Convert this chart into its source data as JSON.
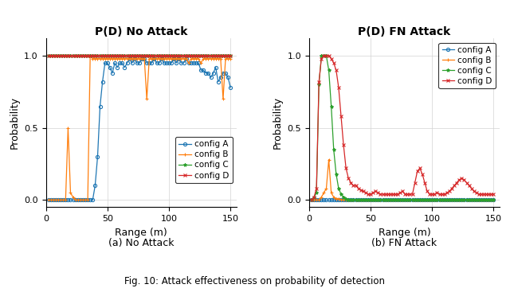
{
  "title_left": "P(D) No Attack",
  "title_right": "P(D) FN Attack",
  "xlabel": "Range (m)",
  "ylabel": "Probability",
  "caption_left": "(a) No Attack",
  "caption_right": "(b) FN Attack",
  "fig_caption": "Fig. 10: Attack effectiveness on probability of detection",
  "xlim": [
    0,
    155
  ],
  "ylim": [
    -0.05,
    1.12
  ],
  "yticks": [
    0,
    0.5,
    1
  ],
  "xticks": [
    0,
    50,
    100,
    150
  ],
  "colors": {
    "A": "#1f77b4",
    "B": "#ff7f0e",
    "C": "#2ca02c",
    "D": "#d62728"
  },
  "markers": {
    "A": "o",
    "B": "+",
    "C": "*",
    "D": "x"
  },
  "no_attack": {
    "range": [
      2,
      4,
      6,
      8,
      10,
      12,
      14,
      16,
      18,
      20,
      22,
      24,
      26,
      28,
      30,
      32,
      34,
      36,
      38,
      40,
      42,
      44,
      46,
      48,
      50,
      52,
      54,
      56,
      58,
      60,
      62,
      64,
      66,
      68,
      70,
      72,
      74,
      76,
      78,
      80,
      82,
      84,
      86,
      88,
      90,
      92,
      94,
      96,
      98,
      100,
      102,
      104,
      106,
      108,
      110,
      112,
      114,
      116,
      118,
      120,
      122,
      124,
      126,
      128,
      130,
      132,
      134,
      136,
      138,
      140,
      142,
      144,
      146,
      148,
      150
    ],
    "A": [
      0,
      0,
      0,
      0,
      0,
      0,
      0,
      0,
      0,
      0,
      0,
      0,
      0,
      0,
      0,
      0,
      0,
      0,
      0,
      0.1,
      0.3,
      0.65,
      0.82,
      0.95,
      0.95,
      0.92,
      0.88,
      0.95,
      0.92,
      0.95,
      0.95,
      0.92,
      0.95,
      0.98,
      0.95,
      0.98,
      0.95,
      0.95,
      0.98,
      0.98,
      0.95,
      0.95,
      0.95,
      0.98,
      0.95,
      0.95,
      0.98,
      0.95,
      0.95,
      0.95,
      0.95,
      0.98,
      0.95,
      0.98,
      0.95,
      0.95,
      0.98,
      0.95,
      0.95,
      0.95,
      0.95,
      0.95,
      0.9,
      0.9,
      0.88,
      0.88,
      0.85,
      0.88,
      0.92,
      0.82,
      0.85,
      0.88,
      0.88,
      0.85,
      0.78
    ],
    "B": [
      0,
      0,
      0,
      0,
      0,
      0,
      0,
      0,
      0.5,
      0.05,
      0.02,
      0.0,
      0.0,
      0.0,
      0.0,
      0.0,
      0.0,
      1.0,
      0.98,
      0.98,
      0.98,
      0.98,
      0.98,
      0.98,
      0.98,
      0.98,
      0.98,
      0.98,
      0.98,
      0.98,
      0.98,
      0.98,
      0.98,
      0.98,
      0.98,
      0.98,
      0.98,
      0.98,
      0.98,
      0.98,
      0.7,
      0.98,
      0.98,
      0.98,
      0.98,
      0.98,
      0.98,
      0.98,
      0.98,
      0.98,
      0.98,
      0.98,
      0.98,
      0.98,
      0.98,
      0.98,
      0.98,
      0.95,
      0.98,
      0.98,
      0.98,
      0.98,
      0.95,
      0.98,
      0.98,
      0.98,
      0.98,
      0.98,
      0.98,
      0.98,
      0.98,
      0.7,
      0.98,
      0.98,
      0.98
    ],
    "C": [
      1,
      1,
      1,
      1,
      1,
      1,
      1,
      1,
      1,
      1,
      1,
      1,
      1,
      1,
      1,
      1,
      1,
      1,
      1,
      1,
      1,
      1,
      1,
      1,
      1,
      1,
      1,
      1,
      1,
      1,
      1,
      1,
      1,
      1,
      1,
      1,
      1,
      1,
      1,
      1,
      1,
      1,
      1,
      1,
      1,
      1,
      1,
      1,
      1,
      1,
      1,
      1,
      1,
      1,
      1,
      1,
      1,
      1,
      1,
      1,
      1,
      1,
      1,
      1,
      1,
      1,
      1,
      1,
      1,
      1,
      1,
      1,
      1,
      1,
      1
    ],
    "D": [
      1,
      1,
      1,
      1,
      1,
      1,
      1,
      1,
      1,
      1,
      1,
      1,
      1,
      1,
      1,
      1,
      1,
      1,
      1,
      1,
      1,
      1,
      1,
      1,
      1,
      1,
      1,
      1,
      1,
      1,
      1,
      1,
      1,
      1,
      1,
      1,
      1,
      1,
      1,
      1,
      1,
      1,
      1,
      1,
      1,
      1,
      1,
      1,
      1,
      1,
      1,
      1,
      1,
      1,
      1,
      1,
      1,
      1,
      1,
      1,
      1,
      1,
      1,
      1,
      1,
      1,
      1,
      1,
      1,
      1,
      1,
      1,
      1,
      1,
      1
    ]
  },
  "fn_attack": {
    "range": [
      2,
      4,
      6,
      8,
      10,
      12,
      14,
      16,
      18,
      20,
      22,
      24,
      26,
      28,
      30,
      32,
      34,
      36,
      38,
      40,
      42,
      44,
      46,
      48,
      50,
      52,
      54,
      56,
      58,
      60,
      62,
      64,
      66,
      68,
      70,
      72,
      74,
      76,
      78,
      80,
      82,
      84,
      86,
      88,
      90,
      92,
      94,
      96,
      98,
      100,
      102,
      104,
      106,
      108,
      110,
      112,
      114,
      116,
      118,
      120,
      122,
      124,
      126,
      128,
      130,
      132,
      134,
      136,
      138,
      140,
      142,
      144,
      146,
      148,
      150
    ],
    "A": [
      0,
      0,
      0,
      0,
      0,
      0,
      0,
      0,
      0,
      0,
      0,
      0,
      0,
      0,
      0,
      0,
      0,
      0,
      0,
      0,
      0,
      0,
      0,
      0,
      0,
      0,
      0,
      0,
      0,
      0,
      0,
      0,
      0,
      0,
      0,
      0,
      0,
      0,
      0,
      0,
      0,
      0,
      0,
      0,
      0,
      0,
      0,
      0,
      0,
      0,
      0,
      0,
      0,
      0,
      0,
      0,
      0,
      0,
      0,
      0,
      0,
      0,
      0,
      0,
      0,
      0,
      0,
      0,
      0,
      0,
      0,
      0,
      0,
      0,
      0
    ],
    "B": [
      0,
      0,
      0,
      0,
      0.02,
      0.05,
      0.08,
      0.28,
      0.05,
      0.02,
      0.01,
      0.01,
      0.0,
      0.0,
      0.0,
      0.0,
      0.0,
      0.0,
      0.0,
      0.0,
      0.0,
      0.0,
      0.0,
      0.0,
      0.0,
      0.0,
      0.0,
      0.0,
      0.0,
      0.0,
      0.0,
      0.0,
      0.0,
      0.0,
      0.0,
      0.0,
      0.0,
      0.0,
      0.0,
      0.0,
      0.0,
      0.0,
      0.0,
      0.0,
      0.0,
      0.0,
      0.0,
      0.0,
      0.0,
      0.0,
      0.0,
      0.0,
      0.0,
      0.0,
      0.0,
      0.0,
      0.0,
      0.0,
      0.0,
      0.0,
      0.0,
      0.0,
      0.0,
      0.0,
      0.0,
      0.0,
      0.0,
      0.0,
      0.0,
      0.0,
      0.0,
      0.0,
      0.0,
      0.0,
      0.0
    ],
    "C": [
      0,
      0.02,
      0.05,
      0.8,
      1.0,
      1.0,
      1.0,
      0.9,
      0.65,
      0.35,
      0.18,
      0.08,
      0.04,
      0.02,
      0.01,
      0.0,
      0.0,
      0.0,
      0.0,
      0.0,
      0.0,
      0.0,
      0.0,
      0.0,
      0.0,
      0.0,
      0.0,
      0.0,
      0.0,
      0.0,
      0.0,
      0.0,
      0.0,
      0.0,
      0.0,
      0.0,
      0.0,
      0.0,
      0.0,
      0.0,
      0.0,
      0.0,
      0.0,
      0.0,
      0.0,
      0.0,
      0.0,
      0.0,
      0.0,
      0.0,
      0.0,
      0.0,
      0.0,
      0.0,
      0.0,
      0.0,
      0.0,
      0.0,
      0.0,
      0.0,
      0.0,
      0.0,
      0.0,
      0.0,
      0.0,
      0.0,
      0.0,
      0.0,
      0.0,
      0.0,
      0.0,
      0.0,
      0.0,
      0.0,
      0.0
    ],
    "D": [
      0,
      0.02,
      0.08,
      0.82,
      0.98,
      1.0,
      1.0,
      1.0,
      0.98,
      0.95,
      0.9,
      0.78,
      0.58,
      0.38,
      0.22,
      0.15,
      0.12,
      0.1,
      0.1,
      0.08,
      0.07,
      0.06,
      0.05,
      0.04,
      0.04,
      0.05,
      0.06,
      0.05,
      0.04,
      0.04,
      0.04,
      0.04,
      0.04,
      0.04,
      0.04,
      0.04,
      0.05,
      0.06,
      0.04,
      0.04,
      0.04,
      0.04,
      0.12,
      0.2,
      0.22,
      0.18,
      0.12,
      0.06,
      0.04,
      0.04,
      0.04,
      0.05,
      0.04,
      0.04,
      0.04,
      0.05,
      0.06,
      0.08,
      0.1,
      0.12,
      0.14,
      0.15,
      0.14,
      0.12,
      0.1,
      0.08,
      0.06,
      0.05,
      0.04,
      0.04,
      0.04,
      0.04,
      0.04,
      0.04,
      0.04
    ]
  }
}
